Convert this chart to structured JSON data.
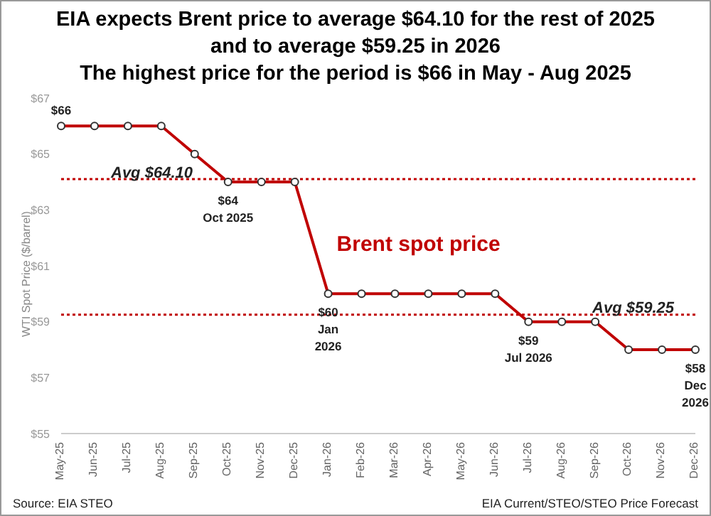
{
  "chart_data": {
    "type": "line",
    "title": "EIA expects Brent price to average $64.10 for the rest of 2025\nand to average $59.25 in 2026\nThe highest price for the period is $66 in May - Aug 2025",
    "ylabel": "WTI Spot Price ($/barrel)",
    "categories": [
      "May-25",
      "Jun-25",
      "Jul-25",
      "Aug-25",
      "Sep-25",
      "Oct-25",
      "Nov-25",
      "Dec-25",
      "Jan-26",
      "Feb-26",
      "Mar-26",
      "Apr-26",
      "May-26",
      "Jun-26",
      "Jul-26",
      "Aug-26",
      "Sep-26",
      "Oct-26",
      "Nov-26",
      "Dec-26"
    ],
    "series": [
      {
        "name": "Brent spot price",
        "color": "#c00000",
        "values": [
          66,
          66,
          66,
          66,
          65,
          64,
          64,
          64,
          60,
          60,
          60,
          60,
          60,
          60,
          59,
          59,
          59,
          58,
          58,
          58
        ],
        "value_labels": [
          "$66",
          null,
          null,
          null,
          null,
          "$64\nOct 2025",
          null,
          null,
          "$60\nJan\n2026",
          null,
          null,
          null,
          null,
          null,
          "$59\nJul 2026",
          null,
          null,
          null,
          null,
          "$58\nDec\n2026"
        ]
      }
    ],
    "ylim": [
      55,
      67
    ],
    "yticks": [
      {
        "value": 55,
        "label": "$55"
      },
      {
        "value": 57,
        "label": "$57"
      },
      {
        "value": 59,
        "label": "$59"
      },
      {
        "value": 61,
        "label": "$61"
      },
      {
        "value": 63,
        "label": "$63"
      },
      {
        "value": 65,
        "label": "$65"
      },
      {
        "value": 67,
        "label": "$67"
      }
    ],
    "ref_lines": [
      {
        "axis": "y",
        "value": 64.1,
        "label": "Avg $64.10",
        "color": "#c00000",
        "line_style": "dotted"
      },
      {
        "axis": "y",
        "value": 59.25,
        "label": "Avg $59.25",
        "color": "#c00000",
        "line_style": "dotted"
      }
    ],
    "marker": "circle",
    "line_style": "solid",
    "grid": false,
    "legend": false,
    "annotations": [
      "Source: EIA STEO",
      "EIA Current/STEO/STEO Price Forecast"
    ]
  }
}
